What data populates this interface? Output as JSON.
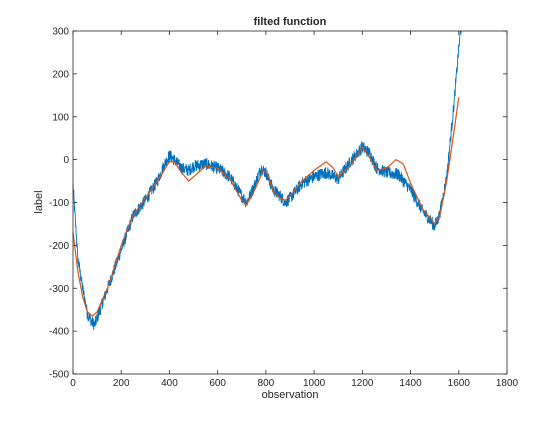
{
  "chart_data": {
    "type": "line",
    "title": "filted function",
    "xlabel": "observation",
    "ylabel": "label",
    "xlim": [
      0,
      1800
    ],
    "ylim": [
      -500,
      300
    ],
    "xticks": [
      0,
      200,
      400,
      600,
      800,
      1000,
      1200,
      1400,
      1600,
      1800
    ],
    "yticks": [
      -500,
      -400,
      -300,
      -200,
      -100,
      0,
      100,
      200,
      300
    ],
    "grid": false,
    "legend": "none",
    "series": [
      {
        "color": "#0072bd",
        "style": "noisy",
        "x": [
          0,
          20,
          40,
          60,
          80,
          90,
          100,
          150,
          200,
          250,
          300,
          350,
          380,
          400,
          420,
          450,
          480,
          500,
          550,
          600,
          650,
          700,
          720,
          750,
          780,
          800,
          830,
          860,
          880,
          900,
          950,
          1000,
          1050,
          1100,
          1150,
          1200,
          1230,
          1260,
          1300,
          1350,
          1400,
          1450,
          1480,
          1500,
          1520,
          1550,
          1580,
          1600,
          1610
        ],
        "y": [
          -60,
          -230,
          -300,
          -360,
          -380,
          -385,
          -370,
          -290,
          -210,
          -130,
          -95,
          -50,
          -10,
          10,
          0,
          -20,
          -25,
          -15,
          -10,
          -20,
          -40,
          -85,
          -100,
          -65,
          -20,
          -30,
          -70,
          -85,
          -100,
          -90,
          -55,
          -40,
          -30,
          -45,
          -5,
          30,
          15,
          -20,
          -30,
          -35,
          -70,
          -120,
          -140,
          -155,
          -130,
          -40,
          130,
          260,
          310
        ]
      },
      {
        "color": "#d95319",
        "style": "smooth",
        "x": [
          0,
          20,
          40,
          60,
          80,
          100,
          150,
          200,
          250,
          300,
          350,
          400,
          420,
          450,
          480,
          500,
          550,
          600,
          650,
          700,
          720,
          750,
          790,
          810,
          830,
          860,
          880,
          900,
          950,
          1000,
          1050,
          1080,
          1100,
          1150,
          1200,
          1230,
          1260,
          1300,
          1340,
          1370,
          1400,
          1450,
          1500,
          1520,
          1550,
          1580,
          1600
        ],
        "y": [
          -170,
          -260,
          -320,
          -355,
          -365,
          -355,
          -290,
          -200,
          -130,
          -90,
          -50,
          -5,
          -5,
          -30,
          -50,
          -40,
          -15,
          -20,
          -45,
          -95,
          -105,
          -75,
          -25,
          -35,
          -75,
          -90,
          -95,
          -85,
          -50,
          -25,
          -5,
          -20,
          -40,
          -15,
          30,
          5,
          -25,
          -20,
          0,
          -10,
          -55,
          -115,
          -150,
          -135,
          -50,
          65,
          145
        ]
      }
    ]
  }
}
